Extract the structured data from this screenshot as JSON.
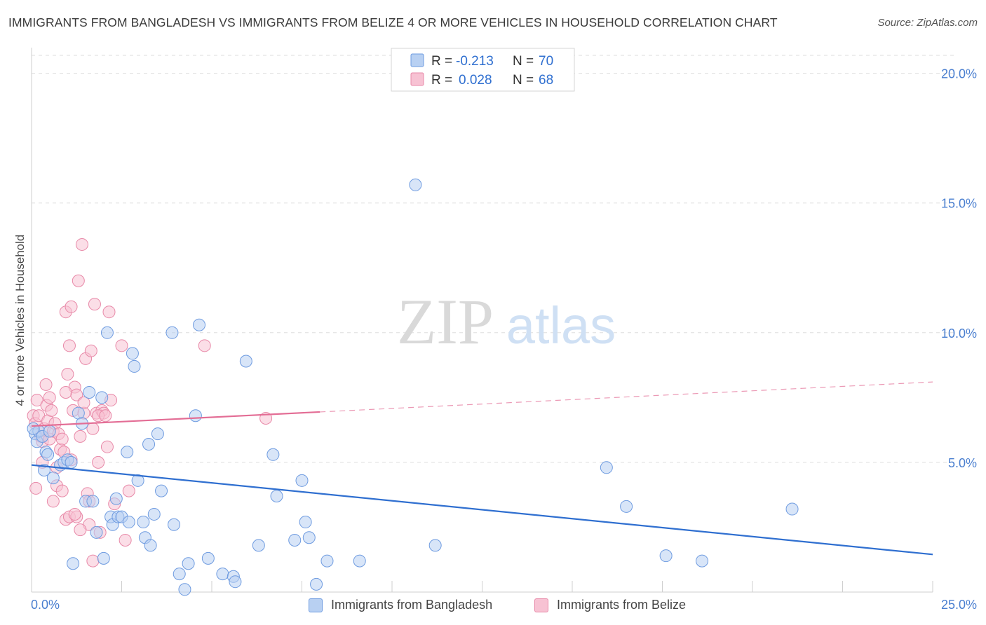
{
  "header": {
    "title": "IMMIGRANTS FROM BANGLADESH VS IMMIGRANTS FROM BELIZE 4 OR MORE VEHICLES IN HOUSEHOLD CORRELATION CHART",
    "source": "Source: ZipAtlas.com"
  },
  "watermark": {
    "zip": "ZIP",
    "atlas": "atlas"
  },
  "colors": {
    "bangladesh_fill": "#b8d0f2",
    "bangladesh_stroke": "#6e9be0",
    "bangladesh_line": "#2f6fd0",
    "belize_fill": "#f7c2d3",
    "belize_stroke": "#e889a8",
    "belize_line": "#e36d95",
    "tick_label": "#4a7fd0"
  },
  "legend_top": {
    "rows": [
      {
        "r_label": "R =",
        "r_value": "-0.213",
        "n_label": "N =",
        "n_value": "70"
      },
      {
        "r_label": "R =",
        "r_value": "0.028",
        "n_label": "N =",
        "n_value": "68"
      }
    ]
  },
  "legend_bottom": {
    "items": [
      "Immigrants from Bangladesh",
      "Immigrants from Belize"
    ]
  },
  "chart_data": {
    "type": "scatter",
    "title": "IMMIGRANTS FROM BANGLADESH VS IMMIGRANTS FROM BELIZE 4 OR MORE VEHICLES IN HOUSEHOLD CORRELATION CHART",
    "xlabel": "",
    "ylabel": "4 or more Vehicles in Household",
    "xlim": [
      0,
      25
    ],
    "ylim": [
      0,
      20.8
    ],
    "x_tick_labels": [
      "0.0%",
      "25.0%"
    ],
    "y_ticks": [
      5,
      10,
      15,
      20
    ],
    "y_tick_labels": [
      "5.0%",
      "10.0%",
      "15.0%",
      "20.0%"
    ],
    "grid": true,
    "legend_position": "top-center",
    "series": [
      {
        "name": "Immigrants from Bangladesh",
        "r": -0.213,
        "n": 70,
        "trend": {
          "x": [
            0,
            25
          ],
          "y": [
            4.9,
            1.45
          ],
          "dashed_from": null
        },
        "points": [
          [
            0.1,
            6.1
          ],
          [
            0.15,
            5.8
          ],
          [
            0.2,
            6.2
          ],
          [
            0.3,
            6.0
          ],
          [
            0.4,
            5.4
          ],
          [
            0.45,
            5.3
          ],
          [
            0.5,
            6.2
          ],
          [
            0.6,
            4.4
          ],
          [
            0.8,
            4.9
          ],
          [
            0.9,
            5.0
          ],
          [
            1.0,
            5.1
          ],
          [
            1.1,
            5.0
          ],
          [
            1.15,
            1.1
          ],
          [
            1.3,
            6.9
          ],
          [
            1.4,
            6.5
          ],
          [
            1.5,
            3.5
          ],
          [
            1.6,
            7.7
          ],
          [
            1.7,
            3.5
          ],
          [
            1.8,
            2.3
          ],
          [
            1.95,
            7.5
          ],
          [
            2.0,
            1.3
          ],
          [
            2.1,
            10.0
          ],
          [
            2.2,
            2.9
          ],
          [
            2.25,
            2.6
          ],
          [
            2.35,
            3.6
          ],
          [
            2.4,
            2.9
          ],
          [
            2.5,
            2.9
          ],
          [
            2.65,
            5.4
          ],
          [
            2.7,
            2.7
          ],
          [
            2.8,
            9.2
          ],
          [
            2.85,
            8.7
          ],
          [
            2.95,
            4.3
          ],
          [
            3.1,
            2.7
          ],
          [
            3.15,
            2.1
          ],
          [
            3.25,
            5.7
          ],
          [
            3.3,
            1.8
          ],
          [
            3.4,
            3.0
          ],
          [
            3.5,
            6.1
          ],
          [
            3.6,
            3.9
          ],
          [
            3.9,
            10.0
          ],
          [
            3.95,
            2.6
          ],
          [
            4.1,
            0.7
          ],
          [
            4.25,
            0.1
          ],
          [
            4.35,
            1.1
          ],
          [
            4.55,
            6.8
          ],
          [
            4.65,
            10.3
          ],
          [
            4.9,
            1.3
          ],
          [
            5.3,
            0.7
          ],
          [
            5.6,
            0.6
          ],
          [
            5.65,
            0.4
          ],
          [
            5.95,
            8.9
          ],
          [
            6.3,
            1.8
          ],
          [
            6.7,
            5.3
          ],
          [
            6.8,
            3.7
          ],
          [
            7.3,
            2.0
          ],
          [
            7.5,
            4.3
          ],
          [
            7.6,
            2.7
          ],
          [
            7.7,
            2.1
          ],
          [
            7.9,
            0.3
          ],
          [
            8.2,
            1.2
          ],
          [
            9.1,
            1.2
          ],
          [
            10.65,
            15.7
          ],
          [
            11.2,
            1.8
          ],
          [
            15.95,
            4.8
          ],
          [
            16.5,
            3.3
          ],
          [
            17.6,
            1.4
          ],
          [
            18.6,
            1.2
          ],
          [
            21.1,
            3.2
          ],
          [
            0.05,
            6.3
          ],
          [
            0.35,
            4.7
          ]
        ]
      },
      {
        "name": "Immigrants from Belize",
        "r": 0.028,
        "n": 68,
        "trend": {
          "x": [
            0,
            25
          ],
          "y": [
            6.4,
            8.1
          ],
          "dashed_from": 8
        },
        "points": [
          [
            0.05,
            6.8
          ],
          [
            0.1,
            6.5
          ],
          [
            0.12,
            4.0
          ],
          [
            0.15,
            7.4
          ],
          [
            0.2,
            6.8
          ],
          [
            0.25,
            6.0
          ],
          [
            0.3,
            5.8
          ],
          [
            0.35,
            6.3
          ],
          [
            0.4,
            8.0
          ],
          [
            0.42,
            7.2
          ],
          [
            0.45,
            6.6
          ],
          [
            0.5,
            5.9
          ],
          [
            0.55,
            7.0
          ],
          [
            0.6,
            6.2
          ],
          [
            0.65,
            6.5
          ],
          [
            0.7,
            4.1
          ],
          [
            0.75,
            6.1
          ],
          [
            0.8,
            5.5
          ],
          [
            0.85,
            5.9
          ],
          [
            0.9,
            5.4
          ],
          [
            0.95,
            10.8
          ],
          [
            1.0,
            8.4
          ],
          [
            1.05,
            9.5
          ],
          [
            1.1,
            11.0
          ],
          [
            1.1,
            5.1
          ],
          [
            1.15,
            7.0
          ],
          [
            1.2,
            7.9
          ],
          [
            1.25,
            7.6
          ],
          [
            1.3,
            12.0
          ],
          [
            1.35,
            6.0
          ],
          [
            1.4,
            13.4
          ],
          [
            1.45,
            6.9
          ],
          [
            1.5,
            9.0
          ],
          [
            1.55,
            3.8
          ],
          [
            1.6,
            2.6
          ],
          [
            1.65,
            9.3
          ],
          [
            1.7,
            6.3
          ],
          [
            1.75,
            11.1
          ],
          [
            1.8,
            6.9
          ],
          [
            1.85,
            5.0
          ],
          [
            1.9,
            2.3
          ],
          [
            1.95,
            7.0
          ],
          [
            2.0,
            6.9
          ],
          [
            2.1,
            5.6
          ],
          [
            2.15,
            10.8
          ],
          [
            2.2,
            7.4
          ],
          [
            2.3,
            3.4
          ],
          [
            2.5,
            9.5
          ],
          [
            2.6,
            2.0
          ],
          [
            2.7,
            3.9
          ],
          [
            4.8,
            9.5
          ],
          [
            6.5,
            6.7
          ],
          [
            0.6,
            3.5
          ],
          [
            0.85,
            3.9
          ],
          [
            0.95,
            2.8
          ],
          [
            1.05,
            2.9
          ],
          [
            1.25,
            2.9
          ],
          [
            1.35,
            2.4
          ],
          [
            1.7,
            1.2
          ],
          [
            0.5,
            7.5
          ],
          [
            0.7,
            4.8
          ],
          [
            0.95,
            7.7
          ],
          [
            1.2,
            3.0
          ],
          [
            1.45,
            7.3
          ],
          [
            1.6,
            3.5
          ],
          [
            1.85,
            6.8
          ],
          [
            0.3,
            5.0
          ],
          [
            2.05,
            6.8
          ]
        ]
      }
    ]
  }
}
